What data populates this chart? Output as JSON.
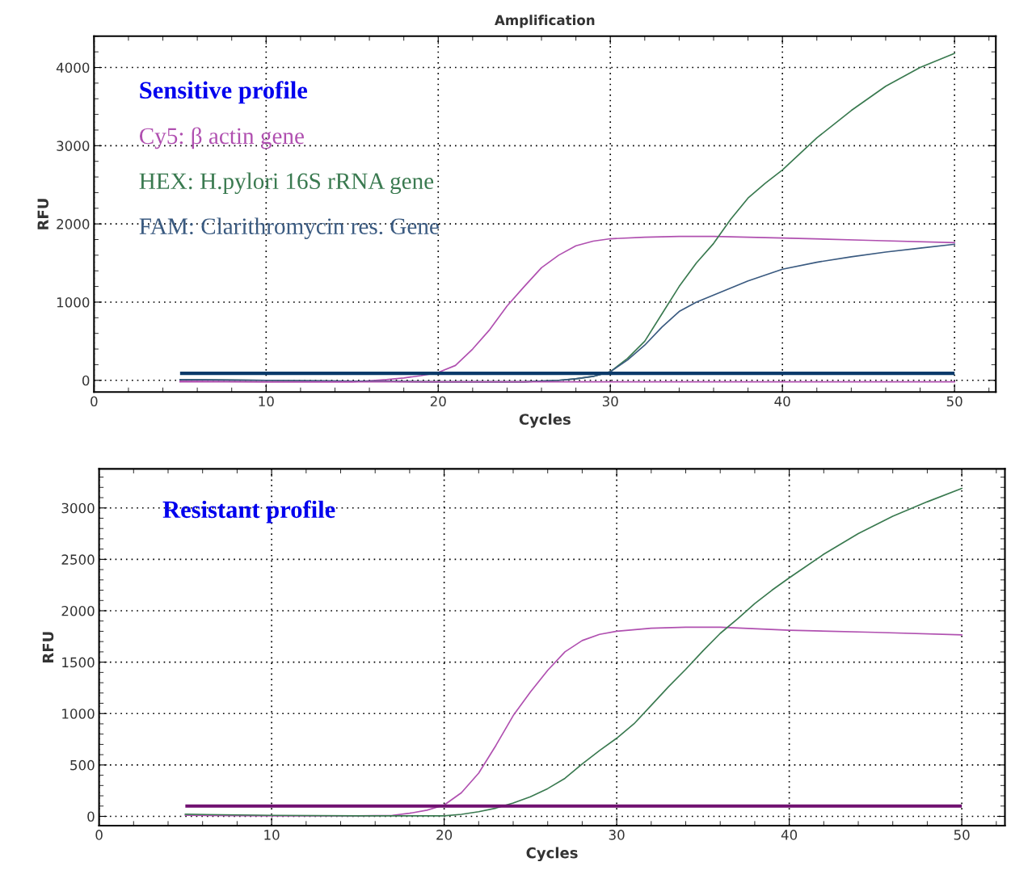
{
  "chart_data": [
    {
      "type": "line",
      "title": "Amplification",
      "xlabel": "Cycles",
      "ylabel": "RFU",
      "legend_title": "Sensitive profile",
      "legend": "top left",
      "grid": true,
      "marker": "none",
      "line_style": "solid",
      "xlim": [
        0,
        52.4
      ],
      "xticks": [
        0,
        10,
        20,
        30,
        40,
        50
      ],
      "ylim": [
        -150,
        4400
      ],
      "yticks": [
        0,
        1000,
        2000,
        3000,
        4000
      ],
      "series": [
        {
          "name": "Cy5: β actin gene",
          "color": "#b050b0",
          "x": [
            5,
            10,
            15,
            17,
            18,
            19,
            20,
            21,
            22,
            23,
            24,
            25,
            26,
            27,
            28,
            29,
            30,
            32,
            34,
            36,
            40,
            45,
            50
          ],
          "values": [
            -10,
            -20,
            -20,
            10,
            30,
            60,
            100,
            190,
            400,
            650,
            950,
            1200,
            1440,
            1600,
            1720,
            1780,
            1810,
            1830,
            1840,
            1840,
            1820,
            1790,
            1760
          ]
        },
        {
          "name": "HEX: H.pylori 16S rRNA gene",
          "color": "#3a7a50",
          "x": [
            5,
            10,
            15,
            20,
            25,
            27,
            28,
            29,
            30,
            31,
            32,
            33,
            34,
            35,
            36,
            37,
            38,
            39,
            40,
            42,
            44,
            46,
            48,
            50
          ],
          "values": [
            10,
            0,
            -10,
            -20,
            -20,
            0,
            20,
            50,
            110,
            280,
            500,
            850,
            1200,
            1500,
            1750,
            2060,
            2330,
            2520,
            2690,
            3100,
            3450,
            3760,
            4000,
            4180
          ]
        },
        {
          "name": "FAM: Clarithromycin res. Gene",
          "color": "#3a5a80",
          "x": [
            5,
            10,
            15,
            20,
            25,
            27,
            28,
            29,
            30,
            31,
            32,
            33,
            34,
            35,
            36,
            38,
            40,
            42,
            44,
            46,
            48,
            50
          ],
          "values": [
            10,
            0,
            -10,
            -20,
            -20,
            0,
            20,
            50,
            110,
            260,
            450,
            680,
            880,
            1000,
            1090,
            1270,
            1420,
            1510,
            1580,
            1640,
            1690,
            1740
          ]
        },
        {
          "color": "#b050b0",
          "x": [
            5,
            20,
            30,
            40,
            50
          ],
          "values": [
            -20,
            -20,
            -20,
            -20,
            -20
          ]
        }
      ],
      "ref_lines": [
        {
          "axis": "y",
          "value": 90,
          "color": "#0a3a6a"
        }
      ]
    },
    {
      "type": "line",
      "xlabel": "Cycles",
      "ylabel": "RFU",
      "annotations": [
        "Resistant profile"
      ],
      "grid": true,
      "marker": "none",
      "line_style": "solid",
      "xlim": [
        0,
        52.5
      ],
      "xticks": [
        0,
        10,
        20,
        30,
        40,
        50
      ],
      "ylim": [
        -90,
        3380
      ],
      "yticks": [
        0,
        500,
        1000,
        1500,
        2000,
        2500,
        3000
      ],
      "series": [
        {
          "color": "#b050b0",
          "x": [
            5,
            10,
            15,
            17,
            18,
            19,
            20,
            21,
            22,
            23,
            24,
            25,
            26,
            27,
            28,
            29,
            30,
            32,
            34,
            36,
            40,
            45,
            50
          ],
          "values": [
            10,
            5,
            5,
            10,
            30,
            60,
            110,
            230,
            420,
            690,
            980,
            1210,
            1420,
            1600,
            1710,
            1770,
            1800,
            1830,
            1840,
            1840,
            1810,
            1790,
            1765
          ]
        },
        {
          "color": "#3a7a50",
          "x": [
            5,
            10,
            15,
            20,
            21,
            22,
            23,
            24,
            25,
            26,
            27,
            28,
            29,
            30,
            31,
            32,
            33,
            34,
            35,
            36,
            37,
            38,
            39,
            40,
            42,
            44,
            46,
            48,
            50
          ],
          "values": [
            20,
            10,
            5,
            5,
            20,
            45,
            80,
            130,
            190,
            270,
            370,
            510,
            640,
            760,
            900,
            1080,
            1260,
            1430,
            1610,
            1780,
            1920,
            2070,
            2200,
            2320,
            2550,
            2750,
            2920,
            3060,
            3190
          ]
        }
      ],
      "ref_lines": [
        {
          "axis": "y",
          "value": 100,
          "color": "#701070"
        }
      ]
    }
  ]
}
